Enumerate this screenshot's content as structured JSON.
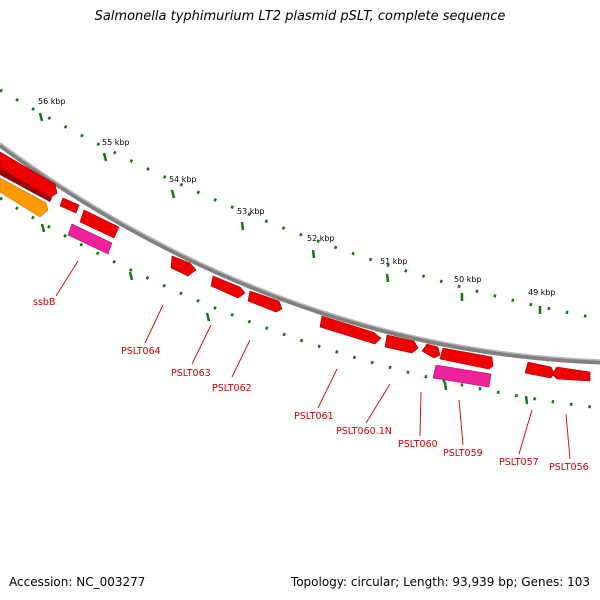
{
  "title": "Salmonella typhimurium LT2 plasmid pSLT, complete sequence",
  "accession": "Accession: NC_003277",
  "summary": "Topology: circular; Length: 93,939 bp; Genes: 103",
  "colors": {
    "gene": "#ee0000",
    "gene_alt": "#ee2299",
    "orange": "#ff9900",
    "backbone": "#808080",
    "ticks": "#117711",
    "label": "#cc0000"
  },
  "kbp_labels": [
    "56 kbp",
    "55 kbp",
    "54 kbp",
    "53 kbp",
    "52 kbp",
    "51 kbp",
    "50 kbp",
    "49 kbp"
  ],
  "genes": [
    "ssbB",
    "PSLT064",
    "PSLT063",
    "PSLT062",
    "PSLT061",
    "PSLT060.1N",
    "PSLT060",
    "PSLT059",
    "PSLT057",
    "PSLT056"
  ]
}
